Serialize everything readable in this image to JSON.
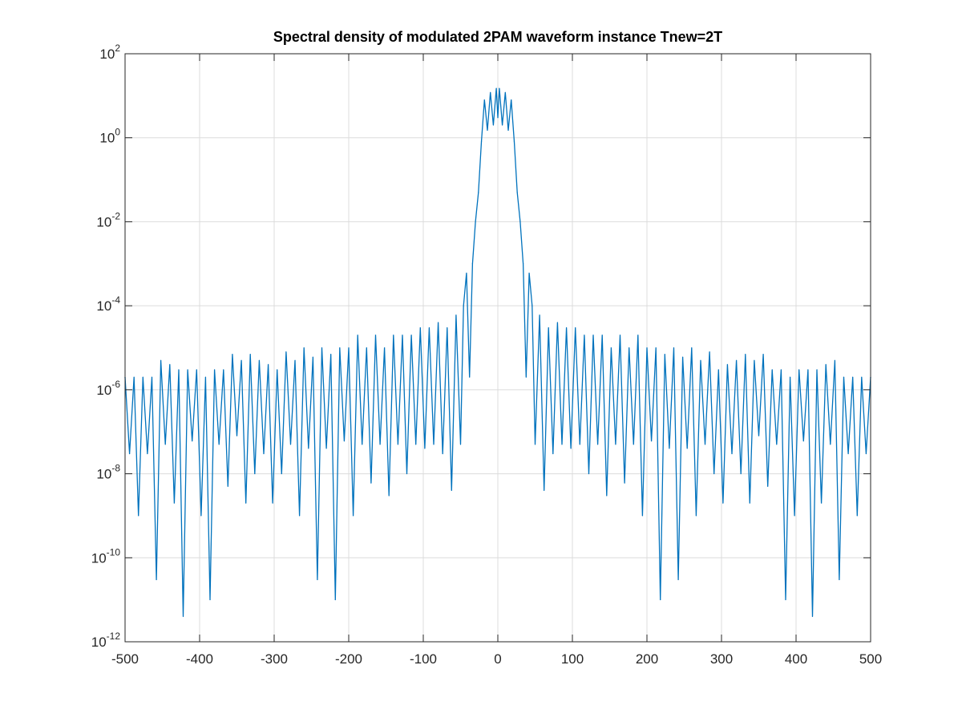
{
  "chart_data": {
    "type": "line",
    "title": "Spectral density of modulated 2PAM waveform instance Tnew=2T",
    "xlabel": "",
    "ylabel": "",
    "xlim": [
      -500,
      500
    ],
    "ylim": [
      1e-12,
      100
    ],
    "yscale": "log",
    "grid": true,
    "legend": "none",
    "x_ticks": [
      -500,
      -400,
      -300,
      -200,
      -100,
      0,
      100,
      200,
      300,
      400,
      500
    ],
    "x_tick_labels": [
      "-500",
      "-400",
      "-300",
      "-200",
      "-100",
      "0",
      "100",
      "200",
      "300",
      "400",
      "500"
    ],
    "y_ticks": [
      1e-12,
      1e-10,
      1e-08,
      1e-06,
      0.0001,
      0.01,
      1,
      100
    ],
    "y_tick_labels": [
      {
        "base": "10",
        "exp": "-12"
      },
      {
        "base": "10",
        "exp": "-10"
      },
      {
        "base": "10",
        "exp": "-8"
      },
      {
        "base": "10",
        "exp": "-6"
      },
      {
        "base": "10",
        "exp": "-4"
      },
      {
        "base": "10",
        "exp": "-2"
      },
      {
        "base": "10",
        "exp": "0"
      },
      {
        "base": "10",
        "exp": "2"
      }
    ],
    "series": [
      {
        "color": "#0072bd",
        "x": [
          -500,
          -494,
          -488,
          -482,
          -476,
          -470,
          -464,
          -458,
          -452,
          -446,
          -440,
          -434,
          -428,
          -422,
          -416,
          -410,
          -404,
          -398,
          -392,
          -386,
          -380,
          -374,
          -368,
          -362,
          -356,
          -350,
          -344,
          -338,
          -332,
          -326,
          -320,
          -314,
          -308,
          -302,
          -296,
          -290,
          -284,
          -278,
          -272,
          -266,
          -260,
          -254,
          -248,
          -242,
          -236,
          -230,
          -224,
          -218,
          -212,
          -206,
          -200,
          -194,
          -188,
          -182,
          -176,
          -170,
          -164,
          -158,
          -152,
          -146,
          -140,
          -134,
          -128,
          -122,
          -116,
          -110,
          -104,
          -98,
          -92,
          -86,
          -80,
          -74,
          -68,
          -62,
          -56,
          -50,
          -46,
          -42,
          -38,
          -34,
          -30,
          -26,
          -22,
          -18,
          -14,
          -10,
          -6,
          -2,
          0,
          2,
          6,
          10,
          14,
          18,
          22,
          26,
          30,
          34,
          38,
          42,
          46,
          50,
          56,
          62,
          68,
          74,
          80,
          86,
          92,
          98,
          104,
          110,
          116,
          122,
          128,
          134,
          140,
          146,
          152,
          158,
          164,
          170,
          176,
          182,
          188,
          194,
          200,
          206,
          212,
          218,
          224,
          230,
          236,
          242,
          248,
          254,
          260,
          266,
          272,
          278,
          284,
          290,
          296,
          302,
          308,
          314,
          320,
          326,
          332,
          338,
          344,
          350,
          356,
          362,
          368,
          374,
          380,
          386,
          392,
          398,
          404,
          410,
          416,
          422,
          428,
          434,
          440,
          446,
          452,
          458,
          464,
          470,
          476,
          482,
          488,
          494,
          500
        ],
        "y": [
          2e-06,
          3e-08,
          2e-06,
          1e-09,
          2e-06,
          3e-08,
          2e-06,
          3e-11,
          5e-06,
          5e-08,
          4e-06,
          2e-09,
          3e-06,
          4e-12,
          3e-06,
          6e-08,
          3e-06,
          1e-09,
          2e-06,
          1e-11,
          3e-06,
          5e-08,
          3e-06,
          5e-09,
          7e-06,
          8e-08,
          5e-06,
          2e-09,
          7e-06,
          1e-08,
          5e-06,
          3e-08,
          4e-06,
          2e-09,
          3e-06,
          1e-08,
          8e-06,
          5e-08,
          5e-06,
          1e-09,
          1e-05,
          4e-08,
          6e-06,
          3e-11,
          1e-05,
          4e-08,
          7e-06,
          1e-11,
          1e-05,
          6e-08,
          1e-05,
          1e-09,
          2e-05,
          5e-08,
          1e-05,
          6e-09,
          2e-05,
          5e-08,
          1e-05,
          3e-09,
          2e-05,
          5e-08,
          2e-05,
          1e-08,
          2e-05,
          5e-08,
          3e-05,
          4e-08,
          3e-05,
          5e-08,
          4e-05,
          3e-08,
          3e-05,
          4e-09,
          6e-05,
          5e-08,
          0.0001,
          0.0006,
          2e-06,
          0.001,
          0.01,
          0.05,
          0.8,
          8.0,
          1.5,
          12.0,
          2.0,
          15.0,
          3.0,
          15.0,
          2.0,
          12.0,
          1.5,
          8.0,
          0.8,
          0.05,
          0.01,
          0.001,
          2e-06,
          0.0006,
          0.0001,
          5e-08,
          6e-05,
          4e-09,
          3e-05,
          3e-08,
          4e-05,
          5e-08,
          3e-05,
          4e-08,
          3e-05,
          5e-08,
          2e-05,
          1e-08,
          2e-05,
          5e-08,
          2e-05,
          3e-09,
          1e-05,
          5e-08,
          2e-05,
          6e-09,
          1e-05,
          5e-08,
          2e-05,
          1e-09,
          1e-05,
          6e-08,
          1e-05,
          1e-11,
          7e-06,
          4e-08,
          1e-05,
          3e-11,
          6e-06,
          4e-08,
          1e-05,
          1e-09,
          5e-06,
          5e-08,
          8e-06,
          1e-08,
          3e-06,
          2e-09,
          4e-06,
          3e-08,
          5e-06,
          1e-08,
          7e-06,
          2e-09,
          5e-06,
          8e-08,
          7e-06,
          5e-09,
          3e-06,
          5e-08,
          3e-06,
          1e-11,
          2e-06,
          1e-09,
          3e-06,
          6e-08,
          3e-06,
          4e-12,
          3e-06,
          2e-09,
          4e-06,
          5e-08,
          5e-06,
          3e-11,
          2e-06,
          3e-08,
          2e-06,
          1e-09,
          2e-06,
          3e-08,
          2e-06
        ]
      }
    ]
  }
}
